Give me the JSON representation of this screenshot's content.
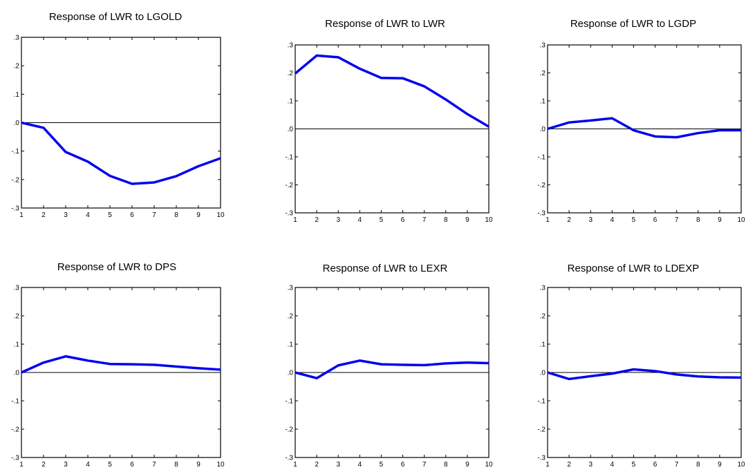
{
  "chart_data": [
    {
      "type": "line",
      "title": "Response of LWR to LGOLD",
      "x": [
        1,
        2,
        3,
        4,
        5,
        6,
        7,
        8,
        9,
        10
      ],
      "series": [
        {
          "values": [
            0.0,
            -0.018,
            -0.103,
            -0.137,
            -0.187,
            -0.215,
            -0.21,
            -0.188,
            -0.153,
            -0.125
          ]
        }
      ],
      "x_tick_labels": [
        "1",
        "2",
        "3",
        "4",
        "5",
        "6",
        "7",
        "8",
        "9",
        "10"
      ],
      "y_tick_labels": [
        ".3",
        ".2",
        ".1",
        ".0",
        "-.1",
        "-.2",
        "-.3"
      ],
      "ylim": [
        -0.3,
        0.3
      ],
      "grid": false,
      "line_color": "#0000ee",
      "zero_line_color": "#000000"
    },
    {
      "type": "line",
      "title": "Response of LWR to LWR",
      "x": [
        1,
        2,
        3,
        4,
        5,
        6,
        7,
        8,
        9,
        10
      ],
      "series": [
        {
          "values": [
            0.198,
            0.262,
            0.256,
            0.215,
            0.182,
            0.181,
            0.152,
            0.105,
            0.053,
            0.008
          ]
        }
      ],
      "x_tick_labels": [
        "1",
        "2",
        "3",
        "4",
        "5",
        "6",
        "7",
        "8",
        "9",
        "10"
      ],
      "y_tick_labels": [
        ".3",
        ".2",
        ".1",
        ".0",
        "-.1",
        "-.2",
        "-.3"
      ],
      "ylim": [
        -0.3,
        0.3
      ],
      "grid": false,
      "line_color": "#0000ee",
      "zero_line_color": "#000000"
    },
    {
      "type": "line",
      "title": "Response of LWR to LGDP",
      "x": [
        1,
        2,
        3,
        4,
        5,
        6,
        7,
        8,
        9,
        10
      ],
      "series": [
        {
          "values": [
            0.0,
            0.023,
            0.03,
            0.038,
            -0.005,
            -0.027,
            -0.03,
            -0.015,
            -0.005,
            -0.005
          ]
        }
      ],
      "x_tick_labels": [
        "1",
        "2",
        "3",
        "4",
        "5",
        "6",
        "7",
        "8",
        "9",
        "10"
      ],
      "y_tick_labels": [
        ".3",
        ".2",
        ".1",
        ".0",
        "-.1",
        "-.2",
        "-.3"
      ],
      "ylim": [
        -0.3,
        0.3
      ],
      "grid": false,
      "line_color": "#0000ee",
      "zero_line_color": "#000000"
    },
    {
      "type": "line",
      "title": "Response of LWR to DPS",
      "x": [
        1,
        2,
        3,
        4,
        5,
        6,
        7,
        8,
        9,
        10
      ],
      "series": [
        {
          "values": [
            0.0,
            0.035,
            0.057,
            0.042,
            0.03,
            0.029,
            0.027,
            0.021,
            0.015,
            0.01
          ]
        }
      ],
      "x_tick_labels": [
        "1",
        "2",
        "3",
        "4",
        "5",
        "6",
        "7",
        "8",
        "9",
        "10"
      ],
      "y_tick_labels": [
        ".3",
        ".2",
        ".1",
        ".0",
        "-.1",
        "-.2",
        "-.3"
      ],
      "ylim": [
        -0.3,
        0.3
      ],
      "grid": false,
      "line_color": "#0000ee",
      "zero_line_color": "#000000"
    },
    {
      "type": "line",
      "title": "Response of LWR to LEXR",
      "x": [
        1,
        2,
        3,
        4,
        5,
        6,
        7,
        8,
        9,
        10
      ],
      "series": [
        {
          "values": [
            0.0,
            -0.02,
            0.025,
            0.042,
            0.029,
            0.027,
            0.026,
            0.032,
            0.035,
            0.033
          ]
        }
      ],
      "x_tick_labels": [
        "1",
        "2",
        "3",
        "4",
        "5",
        "6",
        "7",
        "8",
        "9",
        "10"
      ],
      "y_tick_labels": [
        ".3",
        ".2",
        ".1",
        ".0",
        "-.1",
        "-.2",
        "-.3"
      ],
      "ylim": [
        -0.3,
        0.3
      ],
      "grid": false,
      "line_color": "#0000ee",
      "zero_line_color": "#000000"
    },
    {
      "type": "line",
      "title": "Response of LWR to LDEXP",
      "x": [
        1,
        2,
        3,
        4,
        5,
        6,
        7,
        8,
        9,
        10
      ],
      "series": [
        {
          "values": [
            0.0,
            -0.023,
            -0.013,
            -0.004,
            0.011,
            0.005,
            -0.007,
            -0.014,
            -0.017,
            -0.018
          ]
        }
      ],
      "x_tick_labels": [
        "1",
        "2",
        "3",
        "4",
        "5",
        "6",
        "7",
        "8",
        "9",
        "10"
      ],
      "y_tick_labels": [
        ".3",
        ".2",
        ".1",
        ".0",
        "-.1",
        "-.2",
        "-.3"
      ],
      "ylim": [
        -0.3,
        0.3
      ],
      "grid": false,
      "line_color": "#0000ee",
      "zero_line_color": "#000000"
    }
  ]
}
